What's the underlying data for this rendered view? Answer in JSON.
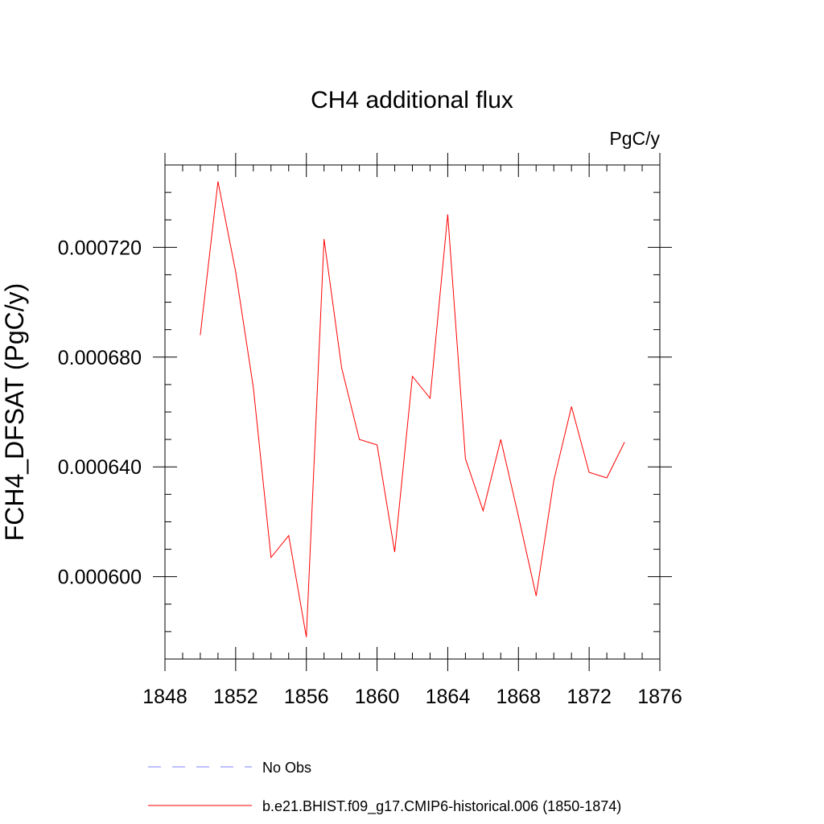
{
  "chart_data": {
    "type": "line",
    "title": "CH4 additional flux",
    "units_label": "PgC/y",
    "ylabel": "FCH4_DFSAT  (PgC/y)",
    "xlabel": "",
    "xlim": [
      1848,
      1876
    ],
    "ylim": [
      0.00057,
      0.00075
    ],
    "x_ticks": [
      1848,
      1852,
      1856,
      1860,
      1864,
      1868,
      1872,
      1876
    ],
    "x_tick_labels": [
      "1848",
      "1852",
      "1856",
      "1860",
      "1864",
      "1868",
      "1872",
      "1876"
    ],
    "x_minor_step": 1,
    "y_ticks": [
      0.0006,
      0.00064,
      0.00068,
      0.00072
    ],
    "y_tick_labels": [
      "0.000600",
      "0.000640",
      "0.000680",
      "0.000720"
    ],
    "y_minor_step": 1e-05,
    "grid": false,
    "series": [
      {
        "name": "b.e21.BHIST.f09_g17.CMIP6-historical.006 (1850-1874)",
        "color": "#ff0000",
        "style": "solid",
        "x": [
          1850,
          1851,
          1852,
          1853,
          1854,
          1855,
          1856,
          1857,
          1858,
          1859,
          1860,
          1861,
          1862,
          1863,
          1864,
          1865,
          1866,
          1867,
          1868,
          1869,
          1870,
          1871,
          1872,
          1873,
          1874
        ],
        "y": [
          0.000688,
          0.000744,
          0.000711,
          0.000669,
          0.000607,
          0.000615,
          0.000578,
          0.000723,
          0.000676,
          0.00065,
          0.000648,
          0.000609,
          0.000673,
          0.000665,
          0.000732,
          0.000643,
          0.000624,
          0.00065,
          0.000622,
          0.000593,
          0.000635,
          0.000662,
          0.000638,
          0.000636,
          0.000649
        ]
      }
    ],
    "legend": {
      "placement": "bottom",
      "entries": [
        {
          "label": "No Obs",
          "color": "#8080ff",
          "style": "dashed"
        },
        {
          "label": "b.e21.BHIST.f09_g17.CMIP6-historical.006 (1850-1874)",
          "color": "#ff0000",
          "style": "solid"
        }
      ]
    }
  }
}
